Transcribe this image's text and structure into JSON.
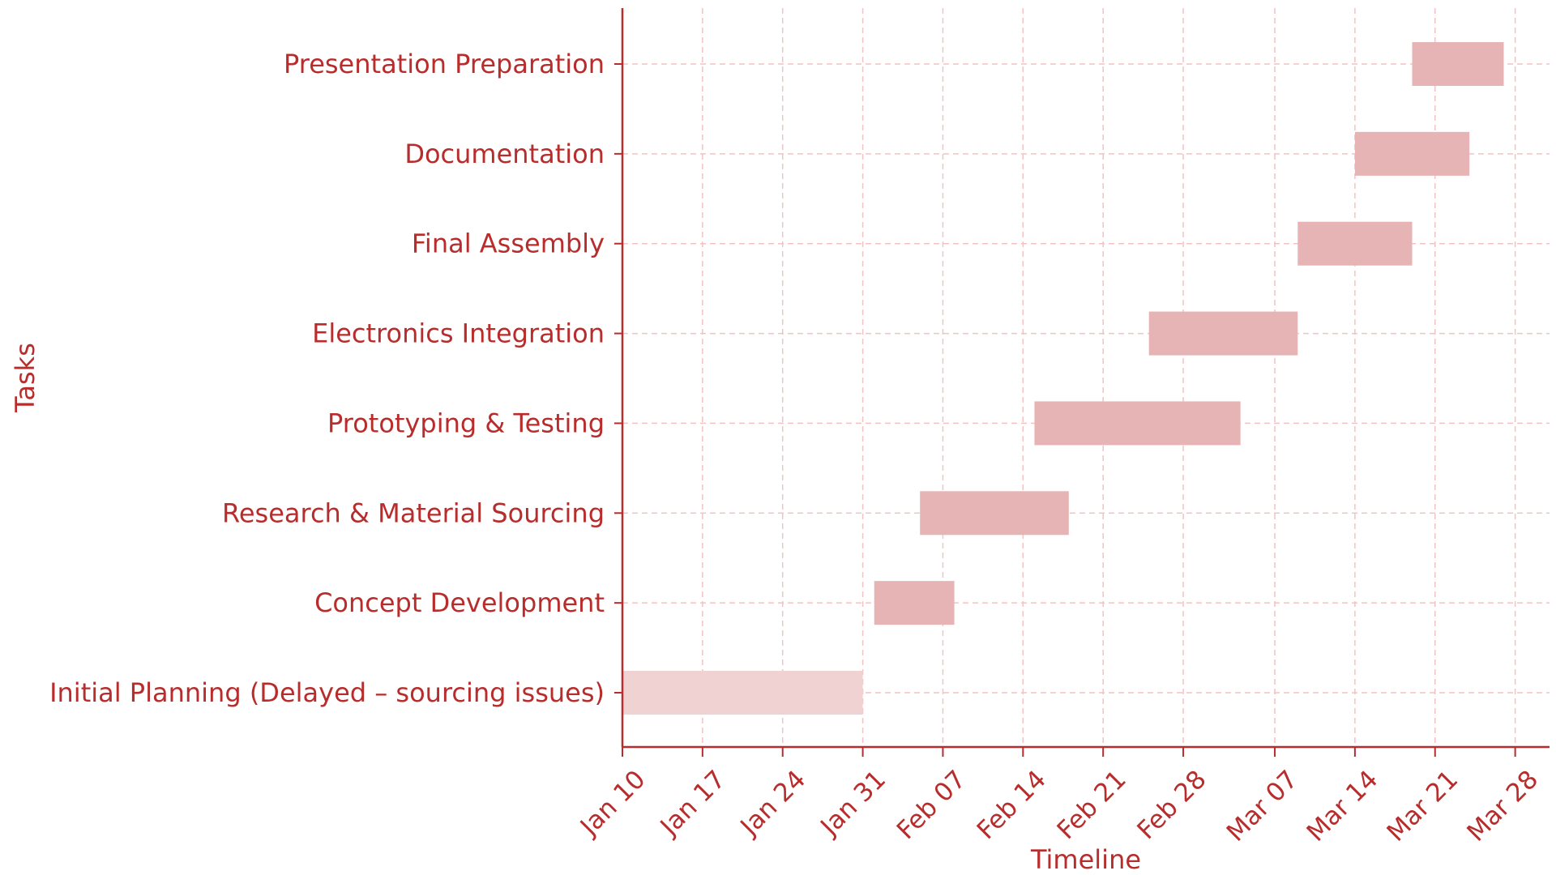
{
  "chart_data": {
    "type": "bar",
    "orientation": "horizontal",
    "subtype": "gantt",
    "title": "",
    "xlabel": "Timeline",
    "ylabel": "Tasks",
    "x_ticks": [
      "Jan 10",
      "Jan 17",
      "Jan 24",
      "Jan 31",
      "Feb 07",
      "Feb 14",
      "Feb 21",
      "Feb 28",
      "Mar 07",
      "Mar 14",
      "Mar 21",
      "Mar 28"
    ],
    "xlim": [
      "Jan 10",
      "Mar 31"
    ],
    "year": 2024,
    "grid": true,
    "categories": [
      "Initial Planning (Delayed – sourcing issues)",
      "Concept Development",
      "Research & Material Sourcing",
      "Prototyping & Testing",
      "Electronics Integration",
      "Final Assembly",
      "Documentation",
      "Presentation Preparation"
    ],
    "tasks": [
      {
        "name": "Initial Planning (Delayed – sourcing issues)",
        "start": "Jan 10",
        "end": "Jan 31",
        "status": "delayed"
      },
      {
        "name": "Concept Development",
        "start": "Feb 01",
        "end": "Feb 08",
        "status": "normal"
      },
      {
        "name": "Research & Material Sourcing",
        "start": "Feb 05",
        "end": "Feb 18",
        "status": "normal"
      },
      {
        "name": "Prototyping & Testing",
        "start": "Feb 15",
        "end": "Mar 04",
        "status": "normal"
      },
      {
        "name": "Electronics Integration",
        "start": "Feb 25",
        "end": "Mar 09",
        "status": "normal"
      },
      {
        "name": "Final Assembly",
        "start": "Mar 09",
        "end": "Mar 19",
        "status": "normal"
      },
      {
        "name": "Documentation",
        "start": "Mar 14",
        "end": "Mar 24",
        "status": "normal"
      },
      {
        "name": "Presentation Preparation",
        "start": "Mar 19",
        "end": "Mar 27",
        "status": "normal"
      }
    ],
    "colors": {
      "text": "#b82c2c",
      "axis": "#b82c2c",
      "grid": "#f0c4c4",
      "bar": "#e6b4b4",
      "bar_delayed": "#f0d2d2"
    }
  }
}
